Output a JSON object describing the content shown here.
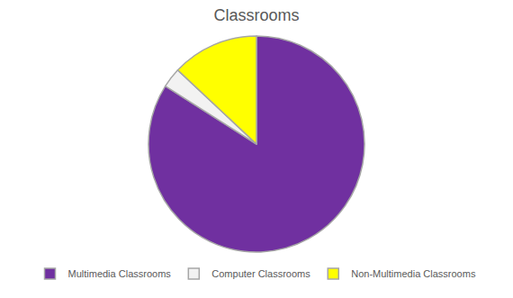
{
  "chart_data": {
    "type": "pie",
    "title": "Classrooms",
    "categories": [
      "Multimedia Classrooms",
      "Computer Classrooms",
      "Non-Multimedia Classrooms"
    ],
    "values": [
      84,
      3,
      13
    ],
    "colors": [
      "#7030a0",
      "#f2f2f2",
      "#ffff00"
    ],
    "legend": "bottom"
  }
}
